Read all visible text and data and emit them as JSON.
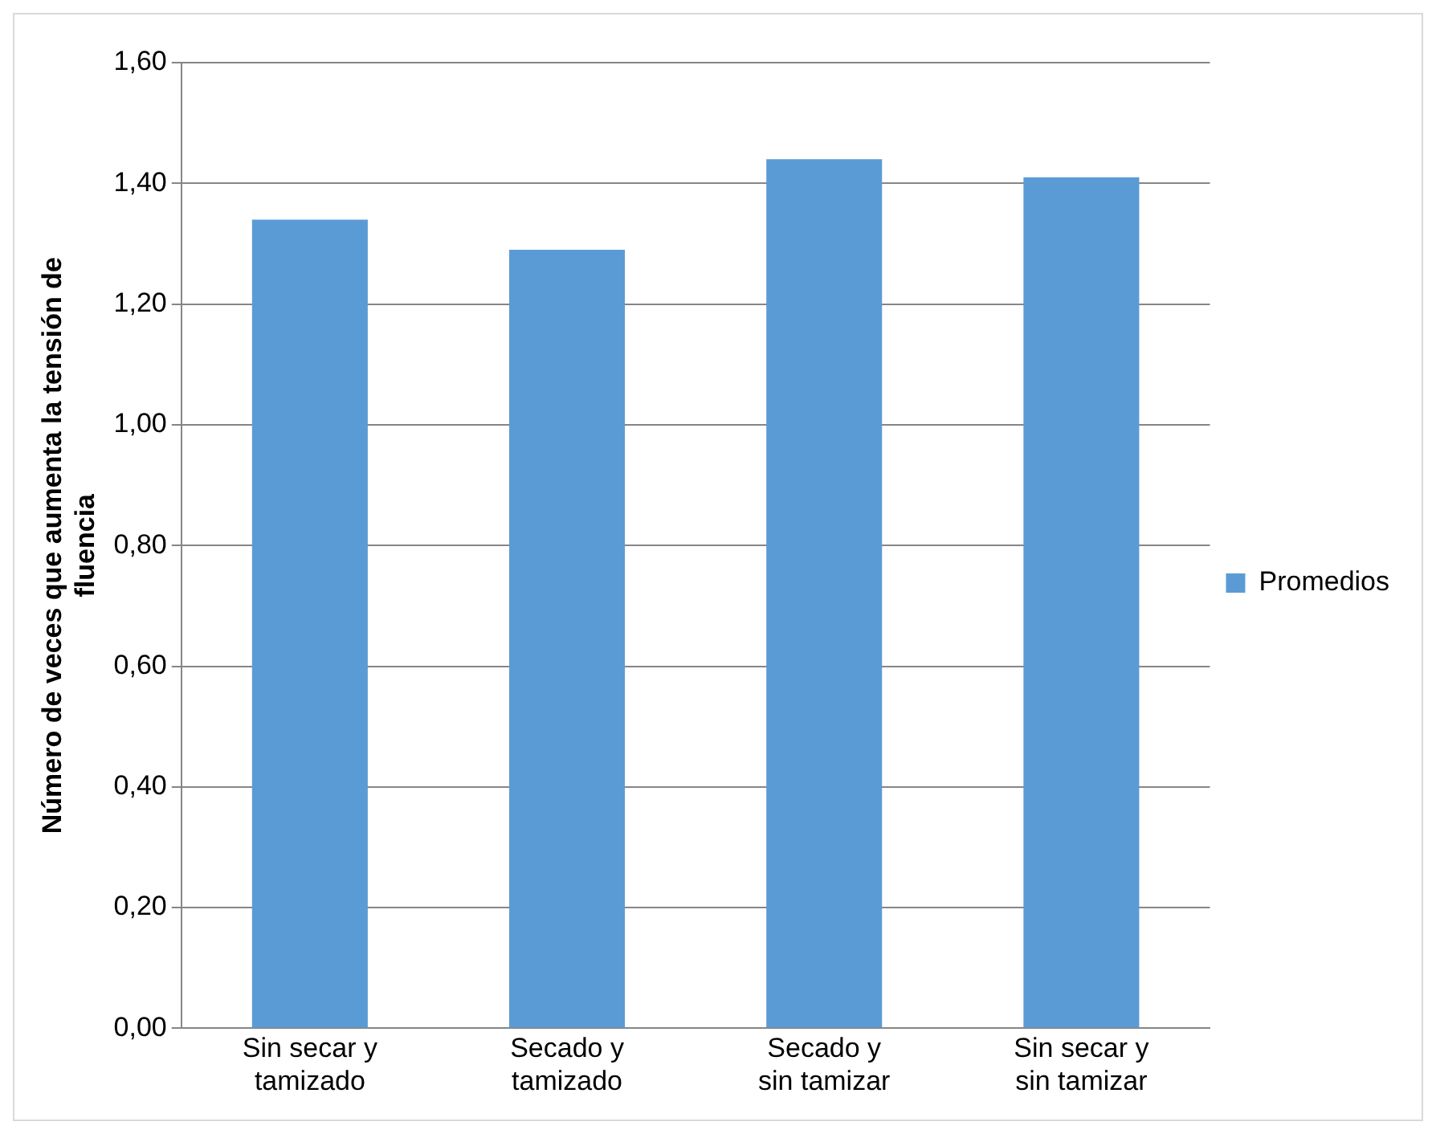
{
  "chart_data": {
    "type": "bar",
    "ylabel": "Número de veces que aumenta la tensión de fluencia",
    "categories": [
      "Sin secar y tamizado",
      "Secado y tamizado",
      "Secado y sin tamizar",
      "Sin secar y sin tamizar"
    ],
    "series": [
      {
        "name": "Promedios",
        "color": "#5b9bd5",
        "values": [
          1.34,
          1.29,
          1.44,
          1.41
        ]
      }
    ],
    "ylim": [
      0,
      1.6
    ],
    "yticks": [
      {
        "value": 0,
        "label": "0,00"
      },
      {
        "value": 0.2,
        "label": "0,20"
      },
      {
        "value": 0.4,
        "label": "0,40"
      },
      {
        "value": 0.6,
        "label": "0,60"
      },
      {
        "value": 0.8,
        "label": "0,80"
      },
      {
        "value": 1,
        "label": "1,00"
      },
      {
        "value": 1.2,
        "label": "1,20"
      },
      {
        "value": 1.4,
        "label": "1,40"
      },
      {
        "value": 1.6,
        "label": "1,60"
      }
    ],
    "grid": "y",
    "legend": "right"
  }
}
